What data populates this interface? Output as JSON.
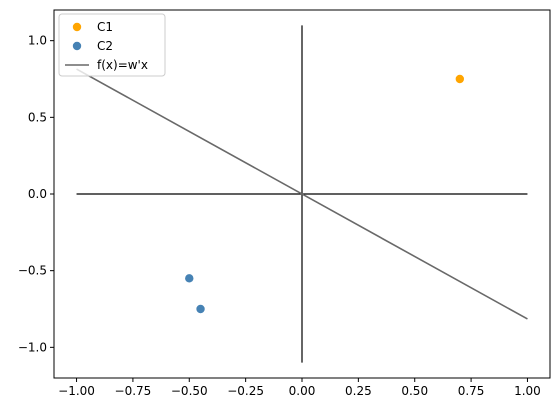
{
  "chart_data": {
    "type": "scatter",
    "title": "",
    "xlabel": "",
    "ylabel": "",
    "xlim": [
      -1.1,
      1.1
    ],
    "ylim": [
      -1.2,
      1.2
    ],
    "x_ticks": [
      -1.0,
      -0.75,
      -0.5,
      -0.25,
      0.0,
      0.25,
      0.5,
      0.75,
      1.0
    ],
    "x_tick_labels": [
      "−1.00",
      "−0.75",
      "−0.50",
      "−0.25",
      "0.00",
      "0.25",
      "0.50",
      "0.75",
      "1.00"
    ],
    "y_ticks": [
      -1.0,
      -0.5,
      0.0,
      0.5,
      1.0
    ],
    "y_tick_labels": [
      "−1.0",
      "−0.5",
      "0.0",
      "0.5",
      "1.0"
    ],
    "grid": false,
    "legend": "top-left",
    "series": [
      {
        "name": "C1",
        "kind": "scatter",
        "color": "#ffa500",
        "x": [
          0.7
        ],
        "y": [
          0.75
        ]
      },
      {
        "name": "C2",
        "kind": "scatter",
        "color": "#4682b4",
        "x": [
          -0.5,
          -0.45
        ],
        "y": [
          -0.55,
          -0.75
        ]
      },
      {
        "name": "f(x)=w'x",
        "kind": "line",
        "color": "#696969",
        "x": [
          -1.0,
          1.0
        ],
        "y": [
          0.815,
          -0.815
        ]
      }
    ],
    "reference_lines": [
      {
        "color": "#000000",
        "x": [
          -1.0,
          1.0
        ],
        "y": [
          0.0,
          0.0
        ]
      },
      {
        "color": "#000000",
        "x": [
          0.0,
          0.0
        ],
        "y": [
          -1.1,
          1.1
        ]
      }
    ]
  }
}
